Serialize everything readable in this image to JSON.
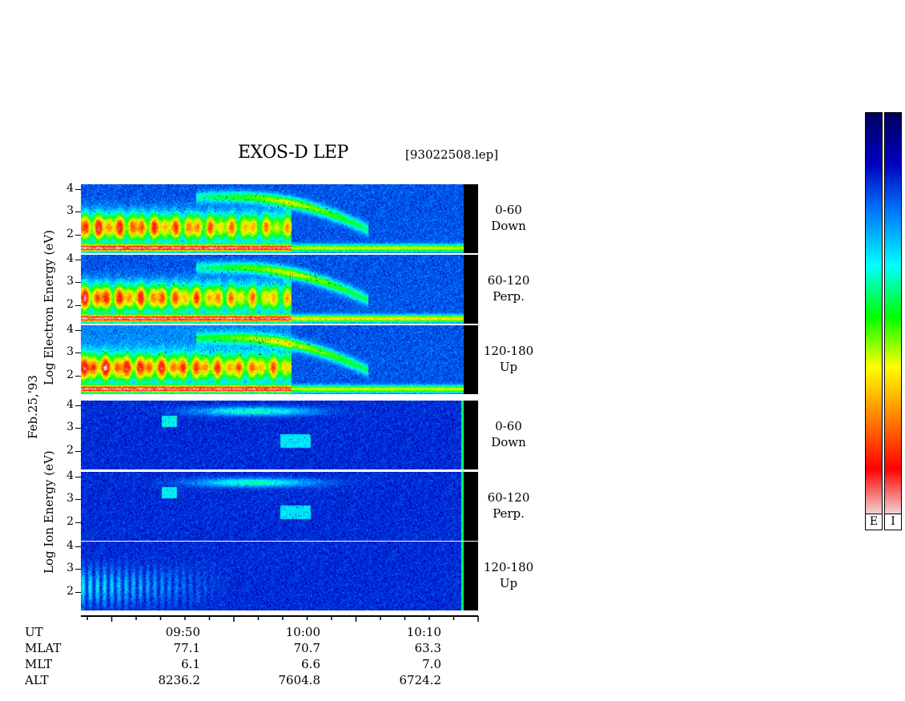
{
  "title": "EXOS-D LEP",
  "filename": "[93022508.lep]",
  "date_label": "Feb.25,'93",
  "electron_axis_label": "Log  Electron  Energy (eV)",
  "ion_axis_label": "Log   Ion  Energy (eV)",
  "y_ticks": [
    "4",
    "3",
    "2"
  ],
  "panels": [
    {
      "group": "electron",
      "angle": "0-60",
      "direction": "Down"
    },
    {
      "group": "electron",
      "angle": "60-120",
      "direction": "Perp."
    },
    {
      "group": "electron",
      "angle": "120-180",
      "direction": "Up"
    },
    {
      "group": "ion",
      "angle": "0-60",
      "direction": "Down"
    },
    {
      "group": "ion",
      "angle": "60-120",
      "direction": "Perp."
    },
    {
      "group": "ion",
      "angle": "120-180",
      "direction": "Up"
    }
  ],
  "time_axis": {
    "labels": [
      "09:50",
      "10:00",
      "10:10"
    ],
    "rows": [
      {
        "name": "UT",
        "values": [
          "09:50",
          "10:00",
          "10:10"
        ]
      },
      {
        "name": "MLAT",
        "values": [
          "77.1",
          "70.7",
          "63.3"
        ]
      },
      {
        "name": "MLT",
        "values": [
          "6.1",
          "6.6",
          "7.0"
        ]
      },
      {
        "name": "ALT",
        "values": [
          "8236.2",
          "7604.8",
          "6724.2"
        ]
      }
    ]
  },
  "colorbar": {
    "labels": [
      "E",
      "I"
    ]
  },
  "chart_data": {
    "type": "heatmap",
    "title": "EXOS-D LEP",
    "xlabel": "UT",
    "ylabel": "Log Energy (eV)",
    "x_tick_labels": [
      "09:50",
      "10:00",
      "10:10"
    ],
    "y_ticks": [
      2,
      3,
      4
    ],
    "ylim": [
      1.2,
      4.2
    ],
    "series": [
      {
        "name": "Electron 0-60 Down"
      },
      {
        "name": "Electron 60-120 Perp."
      },
      {
        "name": "Electron 120-180 Up"
      },
      {
        "name": "Ion 0-60 Down"
      },
      {
        "name": "Ion 60-120 Perp."
      },
      {
        "name": "Ion 120-180 Up"
      }
    ],
    "colormap": [
      "#f0f0f0",
      "#ff0000",
      "#ff8000",
      "#ffff00",
      "#00ff00",
      "#00ffff",
      "#0080ff",
      "#0000c0",
      "#000060"
    ]
  }
}
